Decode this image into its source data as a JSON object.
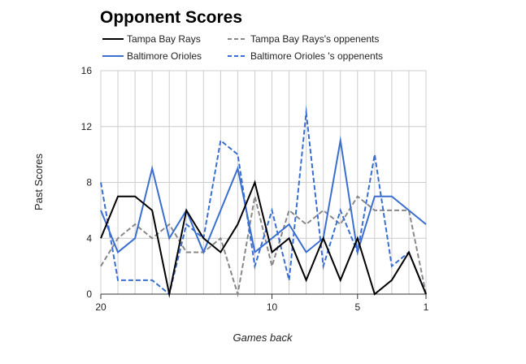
{
  "chart_data": {
    "type": "line",
    "title": "Opponent Scores",
    "xlabel": "Games back",
    "ylabel": "Past Scores",
    "x": [
      20,
      19,
      18,
      17,
      16,
      15,
      14,
      13,
      12,
      11,
      10,
      9,
      8,
      7,
      6,
      5,
      4,
      3,
      2,
      1
    ],
    "xlim": [
      20,
      1
    ],
    "ylim": [
      0,
      16
    ],
    "x_ticks": [
      20,
      10,
      5,
      1
    ],
    "y_ticks": [
      0,
      4,
      8,
      12,
      16
    ],
    "grid": true,
    "legend_position": "top",
    "series": [
      {
        "name": "Tampa Bay Rays",
        "color": "#000000",
        "dash": "solid",
        "values": [
          4,
          7,
          7,
          6,
          0,
          6,
          4,
          3,
          5,
          8,
          3,
          4,
          1,
          4,
          1,
          4,
          0,
          1,
          3,
          0
        ]
      },
      {
        "name": "Tampa Bay Rays's oppenents",
        "color": "#888888",
        "dash": "dashed",
        "values": [
          2,
          4,
          5,
          4,
          5,
          3,
          3,
          4,
          0,
          7,
          2,
          6,
          5,
          6,
          5,
          7,
          6,
          6,
          6,
          0
        ]
      },
      {
        "name": "Baltimore Orioles",
        "color": "#3a6fd0",
        "dash": "solid",
        "values": [
          6,
          3,
          4,
          9,
          4,
          6,
          3,
          6,
          9,
          3,
          4,
          5,
          3,
          4,
          11,
          3,
          7,
          7,
          6,
          5
        ]
      },
      {
        "name": "Baltimore Orioles 's oppenents",
        "color": "#3a6fd0",
        "dash": "dashed",
        "values": [
          8,
          1,
          1,
          1,
          0,
          5,
          4,
          11,
          10,
          2,
          6,
          1,
          13,
          2,
          6,
          3,
          10,
          2,
          3,
          0
        ]
      }
    ]
  }
}
